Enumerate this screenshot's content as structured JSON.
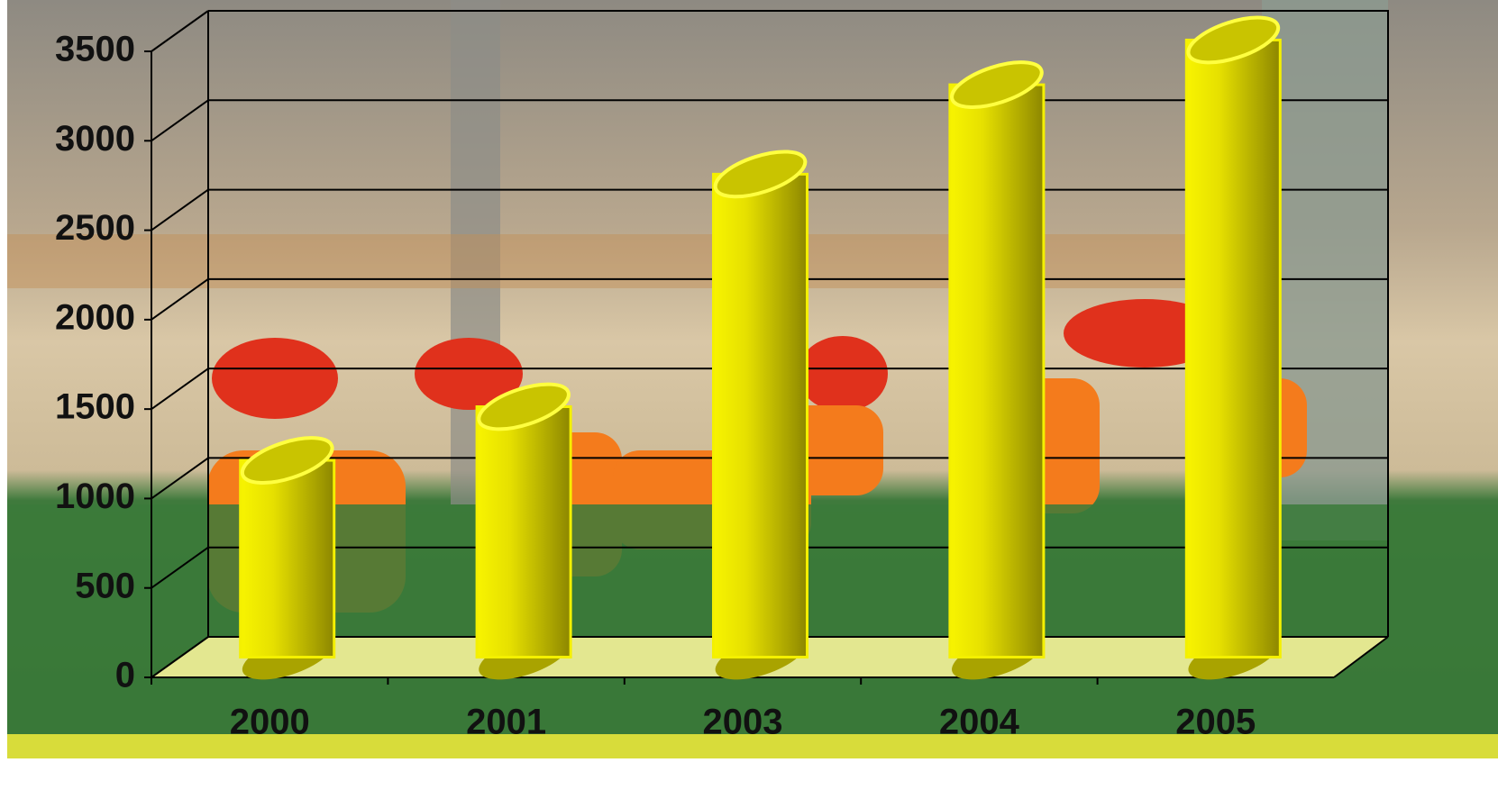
{
  "chart_data": {
    "type": "bar3d",
    "categories": [
      "2000",
      "2001",
      "2003",
      "2004",
      "2005"
    ],
    "values": [
      1100,
      1400,
      2700,
      3200,
      3450
    ],
    "color": "#f2f000",
    "ylim": [
      0,
      3500
    ],
    "yticks": [
      0,
      500,
      1000,
      1500,
      2000,
      2500,
      3000,
      3500
    ],
    "grid": true
  }
}
